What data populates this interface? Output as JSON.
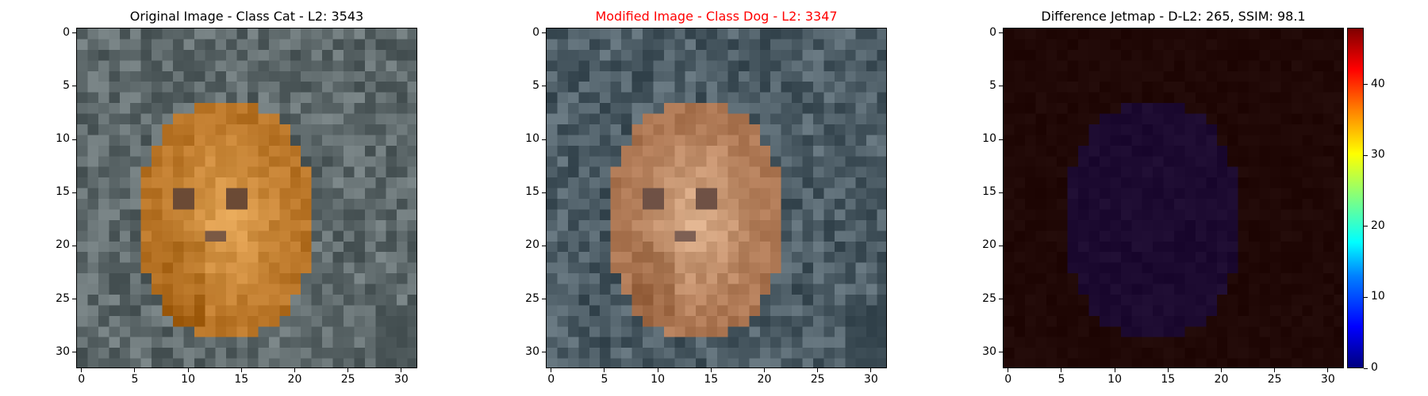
{
  "figure": {
    "panels": [
      {
        "title": "Original Image - Class Cat - L2: 3543",
        "title_color": "#000000",
        "kind": "image",
        "palette": "original"
      },
      {
        "title": "Modified Image - Class Dog - L2: 3347",
        "title_color": "#ff0000",
        "kind": "image",
        "palette": "modified"
      },
      {
        "title": "Difference Jetmap - D-L2: 265, SSIM: 98.1",
        "title_color": "#000000",
        "kind": "difference",
        "palette": "jet"
      }
    ],
    "x_ticks": [
      "0",
      "5",
      "10",
      "15",
      "20",
      "25",
      "30"
    ],
    "y_ticks": [
      "0",
      "5",
      "10",
      "15",
      "20",
      "25",
      "30"
    ],
    "colorbar_ticks": [
      "0",
      "10",
      "20",
      "30",
      "40"
    ]
  },
  "chart_data": [
    {
      "type": "heatmap",
      "title": "Original Image - Class Cat - L2: 3543",
      "grid_size": [
        32,
        32
      ],
      "xlim": [
        -0.5,
        31.5
      ],
      "ylim": [
        31.5,
        -0.5
      ],
      "x_ticks": [
        0,
        5,
        10,
        15,
        20,
        25,
        30
      ],
      "y_ticks": [
        0,
        5,
        10,
        15,
        20,
        25,
        30
      ],
      "colors": {
        "background": "#5f6a6c",
        "subject": "#d08c3e",
        "subject_highlight": "#e7aa5a",
        "eyes": "#6b4a35"
      }
    },
    {
      "type": "heatmap",
      "title": "Modified Image - Class Dog - L2: 3347",
      "grid_size": [
        32,
        32
      ],
      "xlim": [
        -0.5,
        31.5
      ],
      "ylim": [
        31.5,
        -0.5
      ],
      "x_ticks": [
        0,
        5,
        10,
        15,
        20,
        25,
        30
      ],
      "y_ticks": [
        0,
        5,
        10,
        15,
        20,
        25,
        30
      ],
      "colors": {
        "background": "#4d5d66",
        "subject": "#c48e6a",
        "subject_highlight": "#e2b894",
        "eyes": "#6f5145"
      }
    },
    {
      "type": "heatmap",
      "title": "Difference Jetmap - D-L2: 265, SSIM: 98.1",
      "grid_size": [
        32,
        32
      ],
      "xlim": [
        -0.5,
        31.5
      ],
      "ylim": [
        31.5,
        -0.5
      ],
      "x_ticks": [
        0,
        5,
        10,
        15,
        20,
        25,
        30
      ],
      "y_ticks": [
        0,
        5,
        10,
        15,
        20,
        25,
        30
      ],
      "colormap": "jet",
      "colorbar_range": [
        0,
        48
      ],
      "colorbar_ticks": [
        0,
        10,
        20,
        30,
        40
      ],
      "colors": {
        "background": "#200806",
        "subject": "#1c0a30"
      }
    }
  ]
}
